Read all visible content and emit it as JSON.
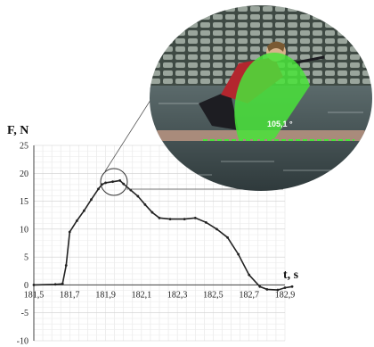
{
  "chart_data": {
    "type": "line",
    "xlabel": "t, s",
    "ylabel": "F, N",
    "xlim": [
      181.5,
      182.9
    ],
    "ylim": [
      -10,
      25
    ],
    "xticks": [
      "181,5",
      "181,7",
      "181,9",
      "182,1",
      "182,3",
      "182,5",
      "182,7",
      "182,9"
    ],
    "yticks": [
      "25",
      "20",
      "15",
      "10",
      "5",
      "0",
      "-5",
      "-10"
    ],
    "grid": true,
    "series": [
      {
        "color": "#222222",
        "points": [
          [
            181.5,
            0.0
          ],
          [
            181.62,
            0.1
          ],
          [
            181.66,
            0.2
          ],
          [
            181.68,
            3.5
          ],
          [
            181.7,
            9.5
          ],
          [
            181.74,
            11.5
          ],
          [
            181.78,
            13.3
          ],
          [
            181.82,
            15.3
          ],
          [
            181.86,
            17.2
          ],
          [
            181.88,
            18.0
          ],
          [
            181.9,
            18.3
          ],
          [
            181.94,
            18.5
          ],
          [
            181.98,
            18.7
          ],
          [
            182.0,
            18.1
          ],
          [
            182.04,
            17.0
          ],
          [
            182.08,
            15.9
          ],
          [
            182.12,
            14.4
          ],
          [
            182.16,
            13.0
          ],
          [
            182.2,
            12.0
          ],
          [
            182.26,
            11.8
          ],
          [
            182.34,
            11.8
          ],
          [
            182.4,
            12.0
          ],
          [
            182.46,
            11.2
          ],
          [
            182.52,
            10.0
          ],
          [
            182.58,
            8.5
          ],
          [
            182.64,
            5.5
          ],
          [
            182.7,
            1.8
          ],
          [
            182.76,
            -0.3
          ],
          [
            182.8,
            -0.8
          ],
          [
            182.86,
            -0.9
          ],
          [
            182.9,
            -0.5
          ],
          [
            182.94,
            -0.3
          ]
        ]
      }
    ]
  },
  "inset": {
    "angle_label": "105,1 °",
    "colors": {
      "angle_fill": "#49e33a",
      "water": "#4a5a5c",
      "jacket": "#b3262e"
    }
  }
}
